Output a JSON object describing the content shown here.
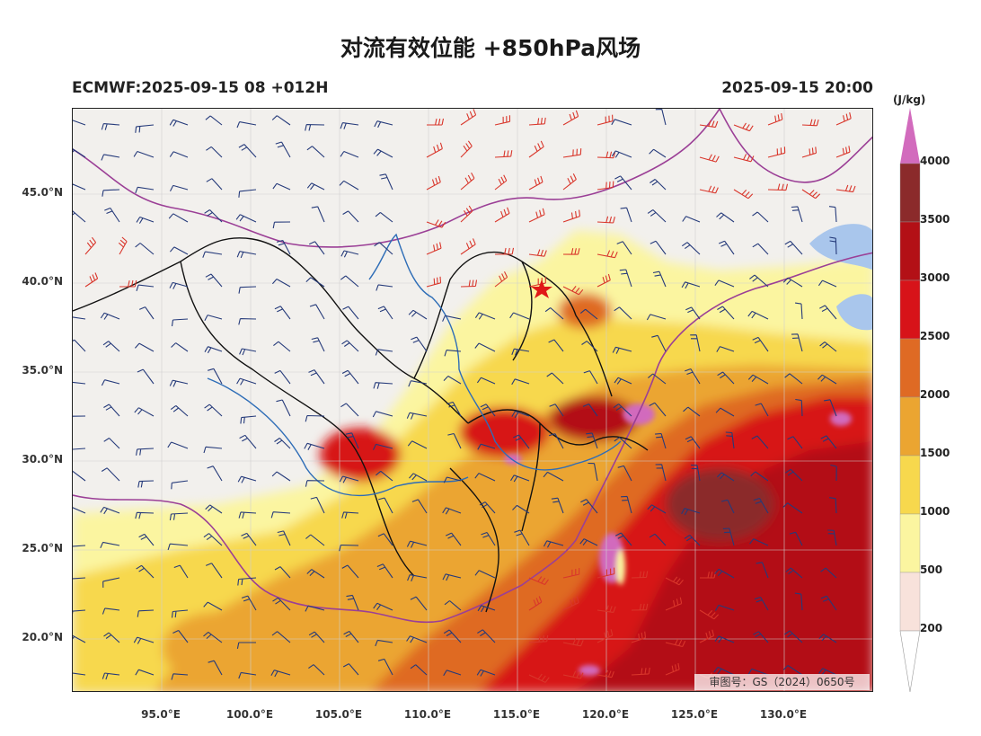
{
  "title": "对流有效位能 +850hPa风场",
  "subtitle_left": "ECMWF:2025-09-15 08 +012H",
  "subtitle_right": "2025-09-15 20:00",
  "approval_no": "审图号：GS（2024）0650号",
  "lat_labels": [
    "45.0°N",
    "40.0°N",
    "35.0°N",
    "30.0°N",
    "25.0°N",
    "20.0°N"
  ],
  "lon_labels": [
    "95.0°E",
    "100.0°E",
    "105.0°E",
    "110.0°E",
    "115.0°E",
    "120.0°E",
    "125.0°E",
    "130.0°E"
  ],
  "colorbar": {
    "unit": "(J/kg)",
    "levels": [
      "4000",
      "3500",
      "3000",
      "2500",
      "2000",
      "1500",
      "1000",
      "500",
      "200"
    ],
    "colors": [
      "#d26bbd",
      "#8b2a2b",
      "#b31016",
      "#d71319",
      "#df6a24",
      "#eba531",
      "#f7d84d",
      "#fbf5a0",
      "#f8e2db",
      "#ffffff"
    ]
  },
  "map": {
    "type": "CAPE shaded map with 850hPa wind barbs",
    "lat_range_deg": [
      17,
      50
    ],
    "lon_range_deg": [
      90,
      135
    ],
    "marker": "capital-star"
  }
}
